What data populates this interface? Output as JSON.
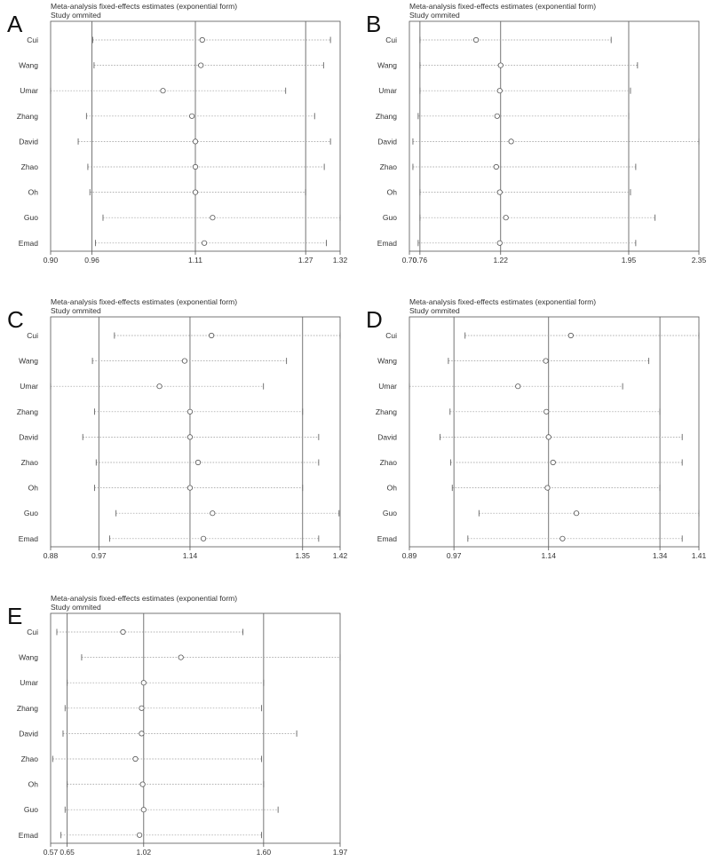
{
  "chart_data": [
    {
      "panel": "A",
      "type": "forest",
      "title": "Meta-analysis fixed-effects estimates (exponential form)",
      "subtitle": "Study ommited",
      "xlim": [
        0.9,
        1.32
      ],
      "ticks": [
        "0.90",
        "0.96",
        "1.11",
        "1.27",
        "1.32"
      ],
      "ref_lines": [
        0.96,
        1.11,
        1.27
      ],
      "categories": [
        "Cui",
        "Wang",
        "Umar",
        "Zhang",
        "David",
        "Zhao",
        "Oh",
        "Guo",
        "Emad"
      ],
      "estimates": [
        1.12,
        1.118,
        1.063,
        1.105,
        1.11,
        1.11,
        1.11,
        1.135,
        1.123
      ],
      "lower": [
        0.961,
        0.963,
        0.9,
        0.952,
        0.94,
        0.954,
        0.957,
        0.976,
        0.965
      ],
      "upper": [
        1.306,
        1.296,
        1.241,
        1.283,
        1.306,
        1.297,
        1.27,
        1.32,
        1.3
      ]
    },
    {
      "panel": "B",
      "type": "forest",
      "title": "Meta-analysis fixed-effects estimates (exponential form)",
      "subtitle": "Study ommited",
      "xlim": [
        0.7,
        2.35
      ],
      "ticks": [
        "0.70",
        "0.76",
        "1.22",
        "1.95",
        "2.35"
      ],
      "ref_lines": [
        0.76,
        1.22,
        1.95
      ],
      "categories": [
        "Cui",
        "Wang",
        "Umar",
        "Zhang",
        "David",
        "Zhao",
        "Oh",
        "Guo",
        "Emad"
      ],
      "estimates": [
        1.08,
        1.22,
        1.215,
        1.2,
        1.28,
        1.195,
        1.215,
        1.25,
        1.215
      ],
      "lower": [
        0.76,
        0.76,
        0.76,
        0.75,
        0.72,
        0.72,
        0.76,
        0.76,
        0.75
      ],
      "upper": [
        1.85,
        2.0,
        1.96,
        1.95,
        2.35,
        1.99,
        1.96,
        2.1,
        1.99
      ]
    },
    {
      "panel": "C",
      "type": "forest",
      "title": "Meta-analysis fixed-effects estimates (exponential form)",
      "subtitle": "Study ommited",
      "xlim": [
        0.88,
        1.42
      ],
      "ticks": [
        "0.88",
        "0.97",
        "1.14",
        "1.35",
        "1.42"
      ],
      "ref_lines": [
        0.97,
        1.14,
        1.35
      ],
      "categories": [
        "Cui",
        "Wang",
        "Umar",
        "Zhang",
        "David",
        "Zhao",
        "Oh",
        "Guo",
        "Emad"
      ],
      "estimates": [
        1.18,
        1.13,
        1.083,
        1.14,
        1.14,
        1.155,
        1.14,
        1.182,
        1.165
      ],
      "lower": [
        0.999,
        0.958,
        0.88,
        0.962,
        0.94,
        0.965,
        0.962,
        1.002,
        0.99
      ],
      "upper": [
        1.42,
        1.32,
        1.277,
        1.35,
        1.38,
        1.38,
        1.35,
        1.418,
        1.38
      ]
    },
    {
      "panel": "D",
      "type": "forest",
      "title": "Meta-analysis fixed-effects estimates (exponential form)",
      "subtitle": "Study ommited",
      "xlim": [
        0.89,
        1.41
      ],
      "ticks": [
        "0.89",
        "0.97",
        "1.14",
        "1.34",
        "1.41"
      ],
      "ref_lines": [
        0.97,
        1.14,
        1.34
      ],
      "categories": [
        "Cui",
        "Wang",
        "Umar",
        "Zhang",
        "David",
        "Zhao",
        "Oh",
        "Guo",
        "Emad"
      ],
      "estimates": [
        1.18,
        1.135,
        1.085,
        1.136,
        1.14,
        1.148,
        1.138,
        1.19,
        1.165
      ],
      "lower": [
        0.99,
        0.96,
        0.89,
        0.963,
        0.945,
        0.964,
        0.967,
        1.015,
        0.995
      ],
      "upper": [
        1.41,
        1.32,
        1.273,
        1.34,
        1.38,
        1.38,
        1.34,
        1.41,
        1.38
      ]
    },
    {
      "panel": "E",
      "type": "forest",
      "title": "Meta-analysis fixed-effects estimates (exponential form)",
      "subtitle": "Study ommited",
      "xlim": [
        0.57,
        1.97
      ],
      "ticks": [
        "0.57",
        "0.65",
        "1.02",
        "1.60",
        "1.97"
      ],
      "ref_lines": [
        0.65,
        1.02,
        1.6
      ],
      "categories": [
        "Cui",
        "Wang",
        "Umar",
        "Zhang",
        "David",
        "Zhao",
        "Oh",
        "Guo",
        "Emad"
      ],
      "estimates": [
        0.92,
        1.2,
        1.02,
        1.01,
        1.01,
        0.98,
        1.015,
        1.02,
        1.0
      ],
      "lower": [
        0.6,
        0.72,
        0.65,
        0.64,
        0.63,
        0.58,
        0.65,
        0.64,
        0.62
      ],
      "upper": [
        1.5,
        1.97,
        1.6,
        1.59,
        1.76,
        1.59,
        1.6,
        1.67,
        1.59
      ]
    }
  ]
}
